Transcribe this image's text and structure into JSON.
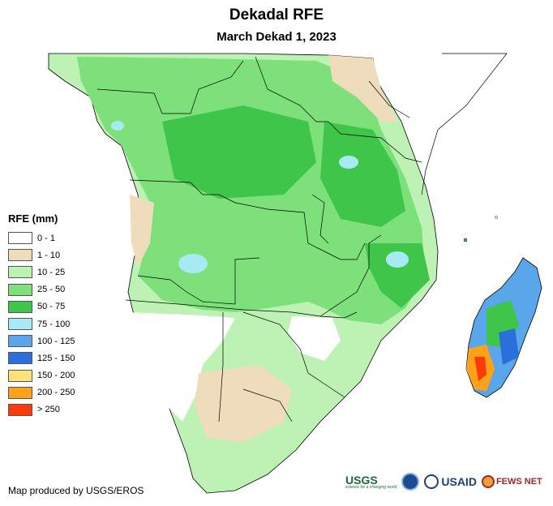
{
  "title": "Dekadal RFE",
  "subtitle": "March Dekad 1, 2023",
  "legend": {
    "title": "RFE (mm)",
    "items": [
      {
        "label": "0 - 1",
        "color": "#ffffff"
      },
      {
        "label": "1 - 10",
        "color": "#efdcbc"
      },
      {
        "label": "10 - 25",
        "color": "#bdf2b4"
      },
      {
        "label": "25 - 50",
        "color": "#7de07a"
      },
      {
        "label": "50 - 75",
        "color": "#3fc64a"
      },
      {
        "label": "75 - 100",
        "color": "#a8eaf4"
      },
      {
        "label": "100 - 125",
        "color": "#5aa6ea"
      },
      {
        "label": "125 - 150",
        "color": "#2a6fdc"
      },
      {
        "label": "150 - 200",
        "color": "#ffe27a"
      },
      {
        "label": "200 - 250",
        "color": "#ffa21a"
      },
      {
        "label": "> 250",
        "color": "#ff3a0a"
      }
    ]
  },
  "credit": "Map produced by USGS/EROS",
  "logos": {
    "usgs": "USGS",
    "usgs_tagline": "science for a changing world",
    "usaid": "USAID",
    "fews": "FEWS NET"
  }
}
